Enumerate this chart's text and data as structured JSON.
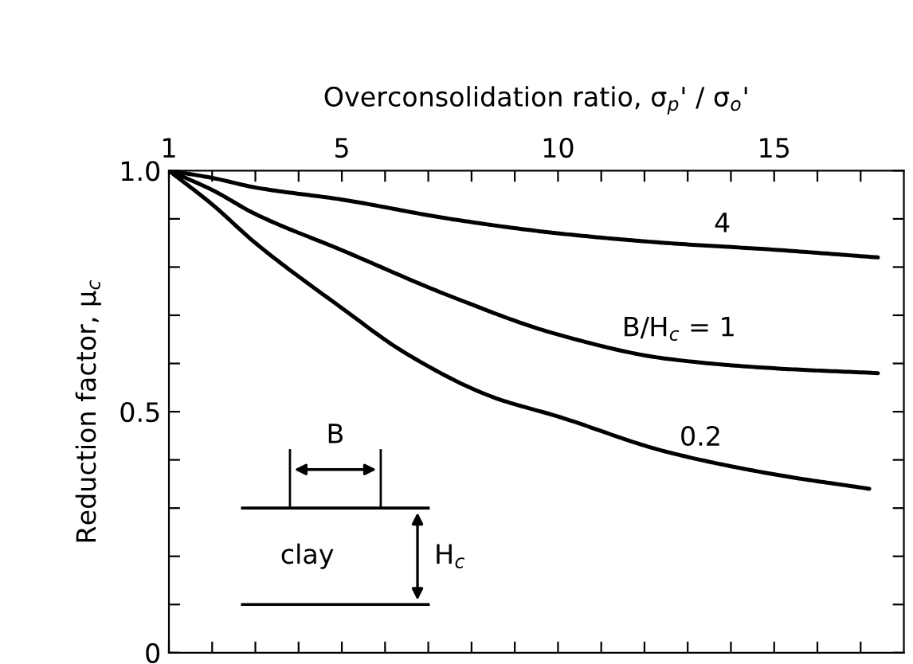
{
  "chart_data": {
    "type": "line",
    "xlabel": "Overconsolidation ratio, σ$_{p}$' / σ$_{o}$'",
    "ylabel": "Reduction factor, μ$_{c}$",
    "xlim": [
      1,
      18
    ],
    "ylim": [
      0,
      1.0
    ],
    "xticks": [
      1,
      {
        "value": 2,
        "label": null
      },
      {
        "value": 3,
        "label": null
      },
      {
        "value": 4,
        "label": null
      },
      5,
      {
        "value": 6,
        "label": null
      },
      {
        "value": 7,
        "label": null
      },
      {
        "value": 8,
        "label": null
      },
      {
        "value": 9,
        "label": null
      },
      10,
      {
        "value": 11,
        "label": null
      },
      {
        "value": 12,
        "label": null
      },
      {
        "value": 13,
        "label": null
      },
      {
        "value": 14,
        "label": null
      },
      15,
      {
        "value": 16,
        "label": null
      },
      {
        "value": 17,
        "label": null
      }
    ],
    "yticks": [
      0,
      {
        "value": 0.1,
        "label": null
      },
      {
        "value": 0.2,
        "label": null
      },
      {
        "value": 0.3,
        "label": null
      },
      {
        "value": 0.4,
        "label": null
      },
      0.5,
      {
        "value": 0.6,
        "label": null
      },
      {
        "value": 0.7,
        "label": null
      },
      {
        "value": 0.8,
        "label": null
      },
      {
        "value": 0.9,
        "label": null
      },
      {
        "value": 1.0,
        "label": "1.0"
      }
    ],
    "grid": false,
    "legend": false,
    "marker": "none",
    "line_style": "solid",
    "series": [
      {
        "name": "4",
        "color": "#000000",
        "x": [
          1,
          2,
          3,
          5,
          7.5,
          10,
          12.5,
          15,
          17.4
        ],
        "values": [
          1.0,
          0.985,
          0.965,
          0.94,
          0.9,
          0.87,
          0.85,
          0.836,
          0.82
        ]
      },
      {
        "name": "B/H$_{c}$ = 1",
        "color": "#000000",
        "x": [
          1,
          2,
          3,
          5,
          7.5,
          10,
          12.5,
          15,
          17.4
        ],
        "values": [
          1.0,
          0.96,
          0.91,
          0.835,
          0.74,
          0.66,
          0.61,
          0.59,
          0.58
        ]
      },
      {
        "name": "0.2",
        "color": "#000000",
        "x": [
          1,
          2,
          3,
          5,
          6.5,
          8.5,
          10,
          12.5,
          15,
          17.2
        ],
        "values": [
          1.0,
          0.93,
          0.85,
          0.715,
          0.62,
          0.53,
          0.49,
          0.417,
          0.37,
          0.34
        ]
      }
    ],
    "annotations": [
      "B",
      "clay",
      "H$_{c}$"
    ]
  }
}
